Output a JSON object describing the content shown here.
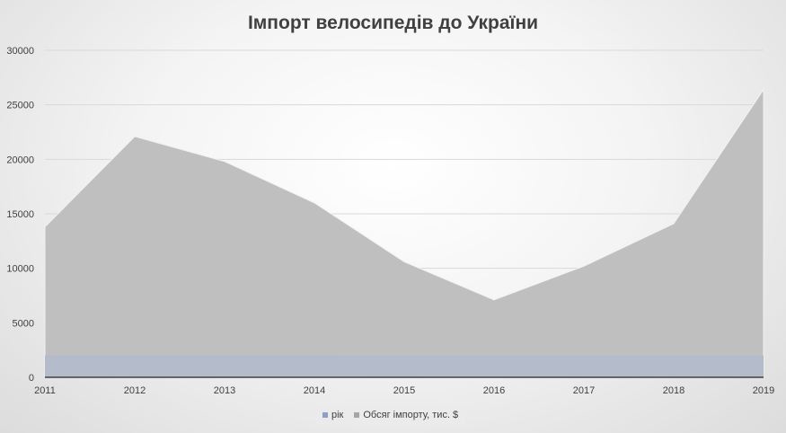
{
  "chart_data": {
    "type": "area",
    "title": "Імпорт велосипедів до України",
    "xlabel": "",
    "ylabel": "",
    "categories": [
      "2011",
      "2012",
      "2013",
      "2014",
      "2015",
      "2016",
      "2017",
      "2018",
      "2019"
    ],
    "ylim": [
      0,
      30000
    ],
    "yticks": [
      "0",
      "5000",
      "10000",
      "15000",
      "20000",
      "25000",
      "30000"
    ],
    "series": [
      {
        "name": "рік",
        "color": "#b4bccb",
        "values": [
          2011,
          2012,
          2013,
          2014,
          2015,
          2016,
          2017,
          2018,
          2019
        ]
      },
      {
        "name": "Обсяг імпорту, тис. $",
        "color": "#bfbfbf",
        "values": [
          13800,
          22100,
          19800,
          16000,
          10600,
          7100,
          10200,
          14100,
          26400
        ]
      }
    ],
    "legend_position": "bottom",
    "grid": true
  }
}
